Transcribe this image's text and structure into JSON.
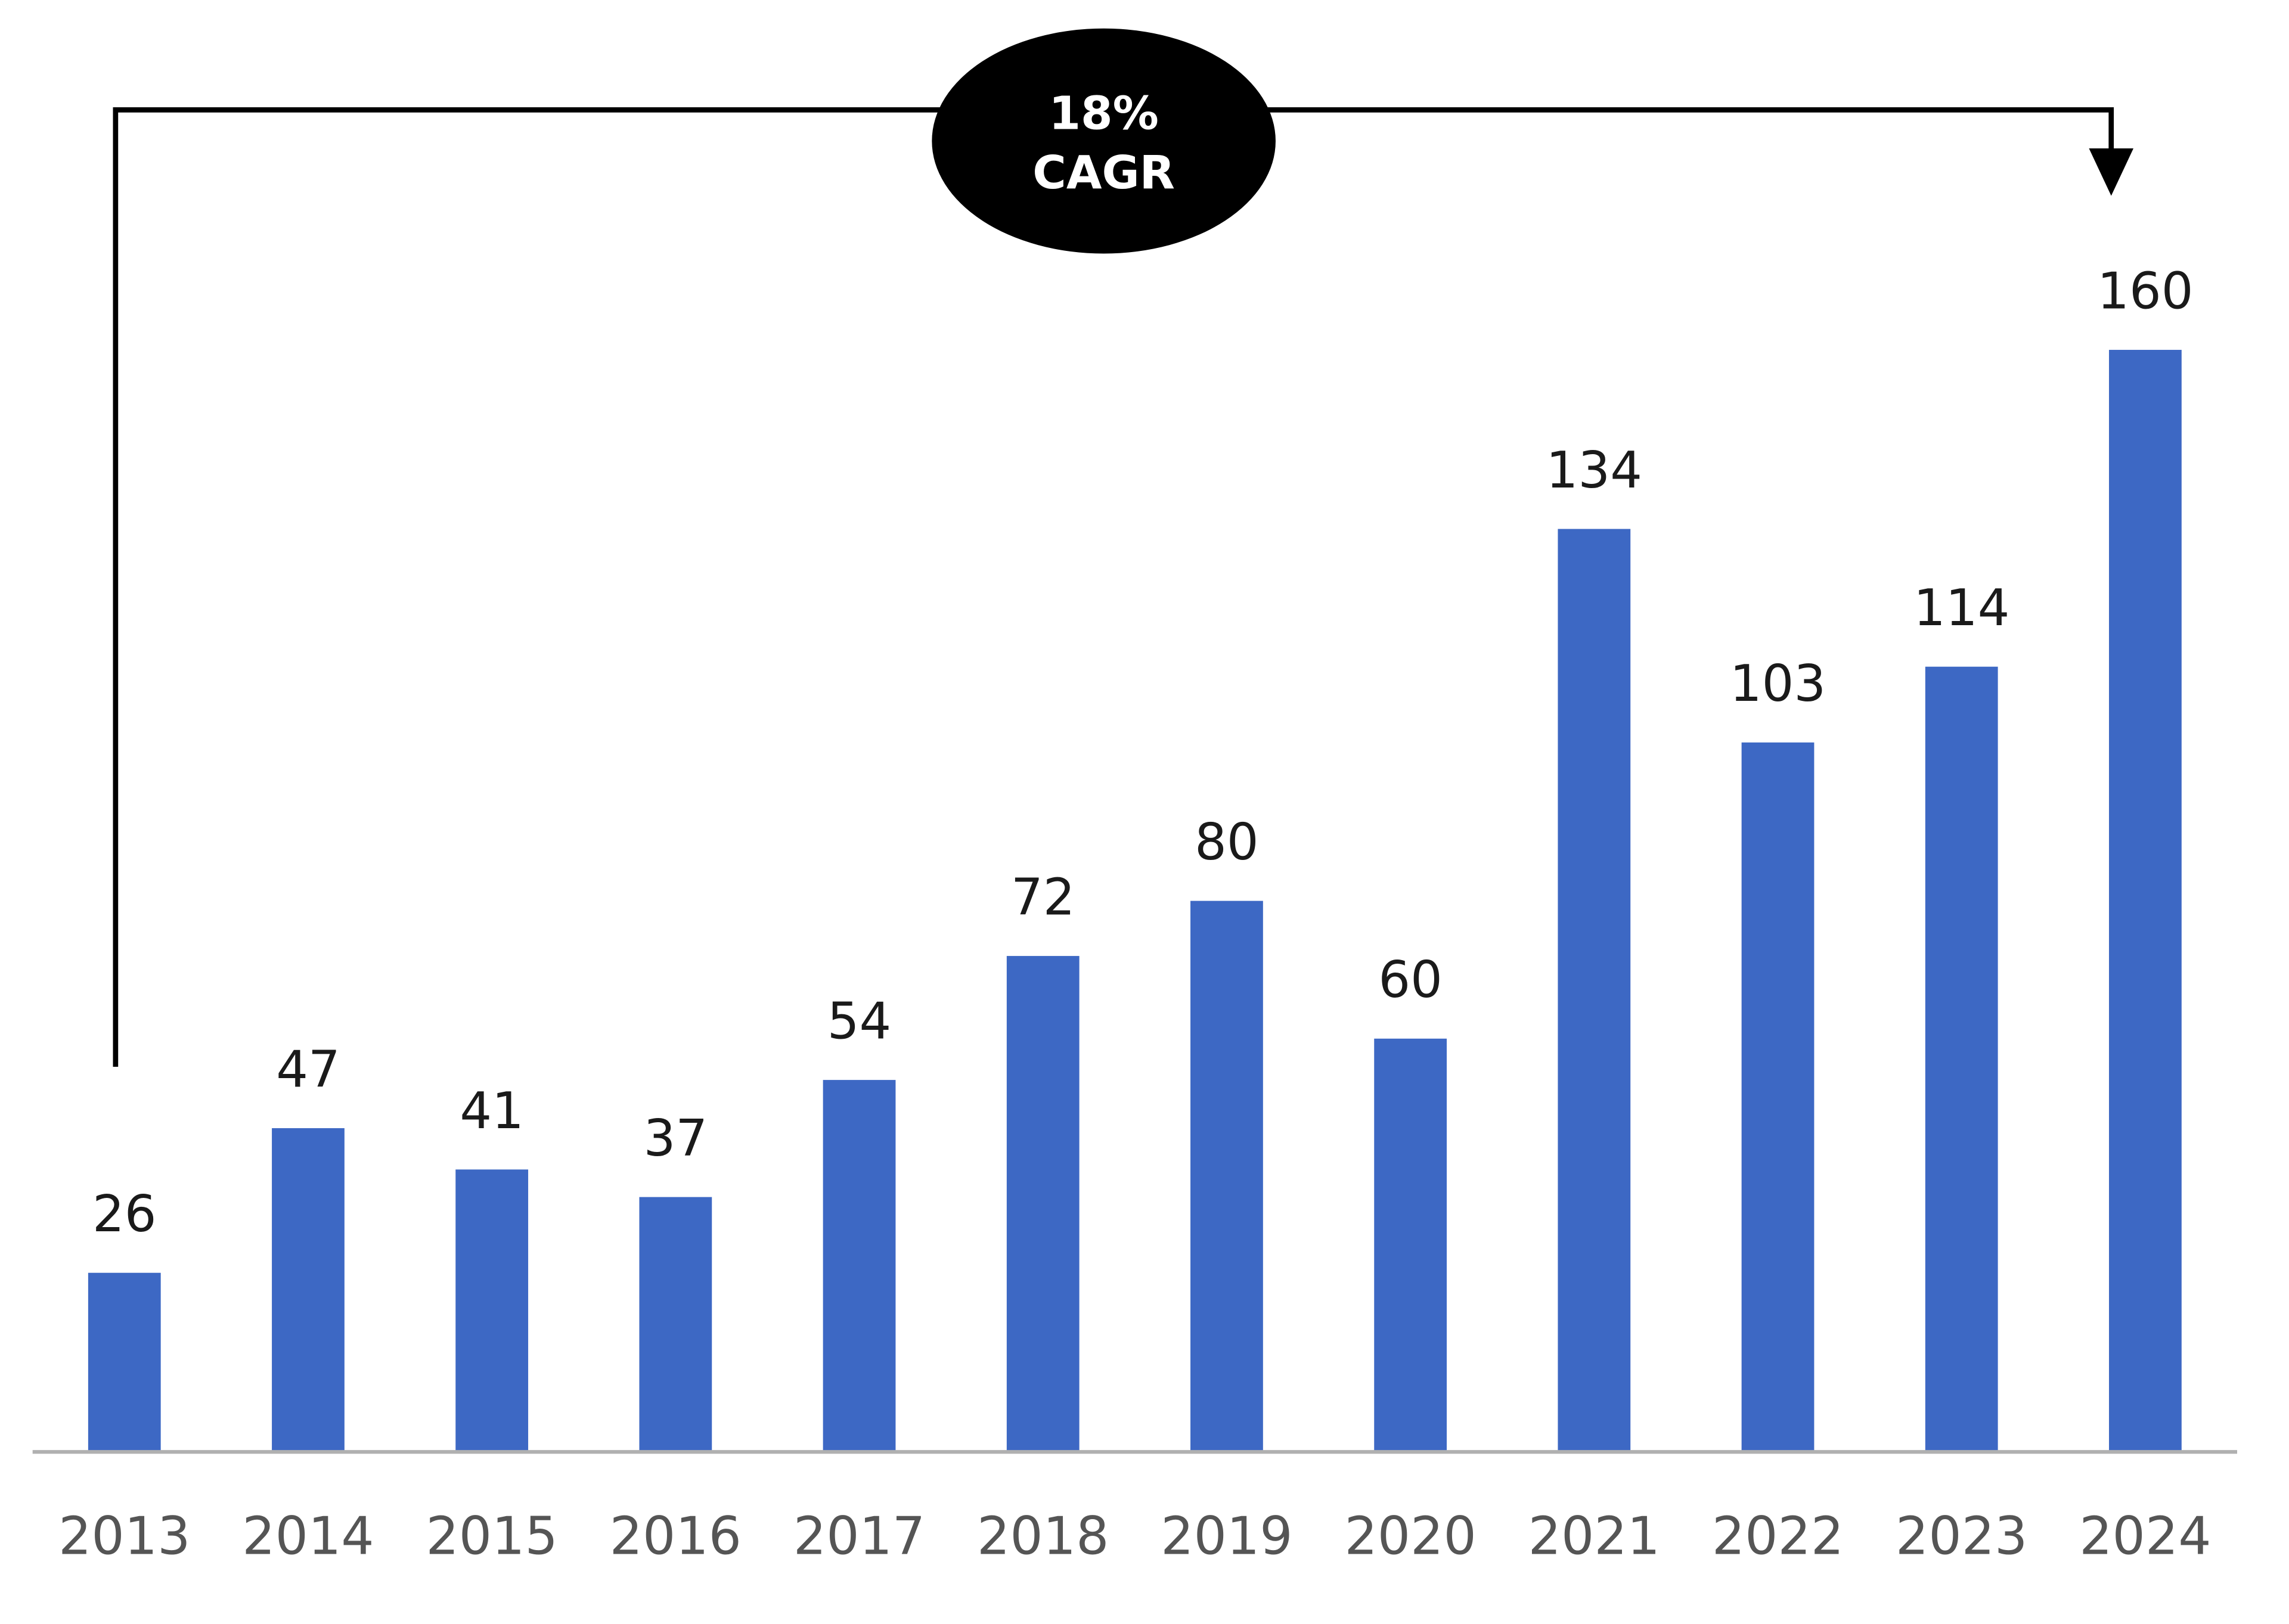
{
  "chart_data": {
    "type": "bar",
    "title": "",
    "xlabel": "",
    "ylabel": "",
    "categories": [
      "2013",
      "2014",
      "2015",
      "2016",
      "2017",
      "2018",
      "2019",
      "2020",
      "2021",
      "2022",
      "2023",
      "2024"
    ],
    "values": [
      26,
      47,
      41,
      37,
      54,
      72,
      80,
      60,
      134,
      103,
      114,
      160
    ],
    "ylim": [
      0,
      160
    ],
    "grid": false,
    "bar_color": "#3d68c4",
    "annotation": {
      "line1": "18%",
      "line2": "CAGR",
      "from": "2013",
      "to": "2024"
    }
  }
}
